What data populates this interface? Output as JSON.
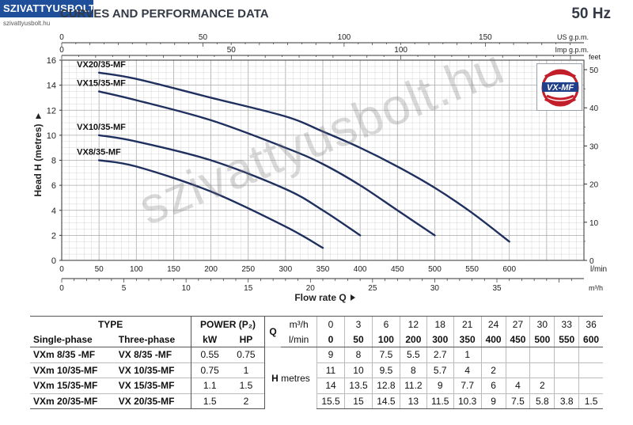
{
  "header": {
    "logo_text": "SZIVATTYUSBOLT.HU",
    "logo_sub": "szivattyusbolt.hu",
    "title": "CURVES AND PERFORMANCE DATA",
    "frequency": "50 Hz"
  },
  "watermark": "szivattyusbolt.hu",
  "chart_data": {
    "type": "line",
    "title": "CURVES AND PERFORMANCE DATA",
    "xlabel": "Flow rate Q",
    "ylabel": "Head H (metres)",
    "xlim": [
      0,
      700
    ],
    "ylim": [
      0,
      16
    ],
    "x_unit": "l/min",
    "y_ticks": [
      0,
      2,
      4,
      6,
      8,
      10,
      12,
      14,
      16
    ],
    "x_ticks": [
      0,
      50,
      100,
      150,
      200,
      250,
      300,
      350,
      400,
      450,
      500,
      550,
      600
    ],
    "grid": true,
    "secondary_axes": {
      "top_usgpm": {
        "unit": "US g.p.m.",
        "ticks": [
          0,
          50,
          100,
          150
        ]
      },
      "top_imp": {
        "unit": "Imp g.p.m.",
        "ticks": [
          0,
          50,
          100
        ]
      },
      "bottom_m3h": {
        "unit": "m³/h",
        "ticks": [
          0,
          5,
          10,
          15,
          20,
          25,
          30,
          35
        ]
      },
      "right_feet": {
        "unit": "feet",
        "ticks": [
          0,
          10,
          20,
          30,
          40,
          50
        ]
      }
    },
    "series": [
      {
        "name": "VX8/35-MF",
        "x": [
          50,
          100,
          200,
          300,
          350
        ],
        "y": [
          8,
          7.5,
          5.5,
          2.7,
          1
        ]
      },
      {
        "name": "VX10/35-MF",
        "x": [
          50,
          100,
          200,
          300,
          350,
          400
        ],
        "y": [
          10,
          9.5,
          8,
          5.7,
          4,
          2
        ]
      },
      {
        "name": "VX15/35-MF",
        "x": [
          50,
          100,
          200,
          300,
          350,
          400,
          450,
          500
        ],
        "y": [
          13.5,
          12.8,
          11.2,
          9,
          7.7,
          6,
          4,
          2
        ]
      },
      {
        "name": "VX20/35-MF",
        "x": [
          50,
          100,
          200,
          300,
          350,
          400,
          450,
          500,
          550,
          600
        ],
        "y": [
          15,
          14.5,
          13,
          11.5,
          10.3,
          9,
          7.5,
          5.8,
          3.8,
          1.5
        ]
      }
    ]
  },
  "table": {
    "type_header": "TYPE",
    "power_header": "POWER (P₂)",
    "q_label": "Q",
    "m3h_unit": "m³/h",
    "lmin_unit": "l/min",
    "single_phase": "Single-phase",
    "three_phase": "Three-phase",
    "kw": "kW",
    "hp": "HP",
    "h_label": "H",
    "h_unit": "metres",
    "q_m3h": [
      "0",
      "3",
      "6",
      "12",
      "18",
      "21",
      "24",
      "27",
      "30",
      "33",
      "36"
    ],
    "q_lmin": [
      "0",
      "50",
      "100",
      "200",
      "300",
      "350",
      "400",
      "450",
      "500",
      "550",
      "600"
    ],
    "rows": [
      {
        "single": "VXm 8/35  -MF",
        "three": "VX 8/35  -MF",
        "kw": "0.55",
        "hp": "0.75",
        "h": [
          "9",
          "8",
          "7.5",
          "5.5",
          "2.7",
          "1",
          "",
          "",
          "",
          "",
          ""
        ]
      },
      {
        "single": "VXm 10/35-MF",
        "three": "VX 10/35-MF",
        "kw": "0.75",
        "hp": "1",
        "h": [
          "11",
          "10",
          "9.5",
          "8",
          "5.7",
          "4",
          "2",
          "",
          "",
          "",
          ""
        ]
      },
      {
        "single": "VXm 15/35-MF",
        "three": "VX 15/35-MF",
        "kw": "1.1",
        "hp": "1.5",
        "h": [
          "14",
          "13.5",
          "12.8",
          "11.2",
          "9",
          "7.7",
          "6",
          "4",
          "2",
          "",
          ""
        ]
      },
      {
        "single": "VXm 20/35-MF",
        "three": "VX 20/35-MF",
        "kw": "1.5",
        "hp": "2",
        "h": [
          "15.5",
          "15",
          "14.5",
          "13",
          "11.5",
          "10.3",
          "9",
          "7.5",
          "5.8",
          "3.8",
          "1.5"
        ]
      }
    ]
  },
  "colors": {
    "curve": "#1f2f5e",
    "grid_minor": "#d6d6d6",
    "grid_major": "#a9a9a9",
    "axis": "#333333",
    "logo_bg": "#1f4f9a"
  },
  "icons": {
    "brand": "vx-mf-logo-icon"
  }
}
